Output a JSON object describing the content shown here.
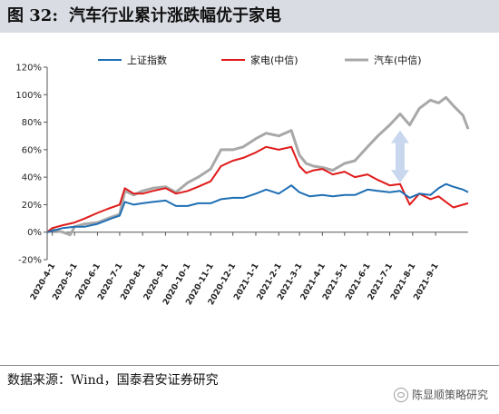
{
  "figure": {
    "number": "图 32:",
    "title": "汽车行业累计涨跌幅优于家电"
  },
  "source_text": "数据来源：Wind，国泰君安证券研究",
  "watermark_text": "陈显顺策略研究",
  "watermark_icon": "wechat-icon",
  "colors": {
    "series": [
      "#1f6fb4",
      "#e01a1a",
      "#a8a8a8"
    ],
    "arrow": "#c9d7ee"
  },
  "chart_data": {
    "type": "line",
    "title": "",
    "xlabel": "",
    "ylabel": "",
    "ylim": [
      -0.2,
      1.2
    ],
    "y_ticks": [
      "-20%",
      "0%",
      "20%",
      "40%",
      "60%",
      "80%",
      "100%",
      "120%"
    ],
    "x_range": [
      "2020-03-25",
      "2021-10-15"
    ],
    "x_ticks": [
      "2020-4-1",
      "2020-5-1",
      "2020-6-1",
      "2020-7-1",
      "2020-8-1",
      "2020-9-1",
      "2020-10-1",
      "2020-11-1",
      "2020-12-1",
      "2021-1-1",
      "2021-2-1",
      "2021-3-1",
      "2021-4-1",
      "2021-5-1",
      "2021-6-1",
      "2021-7-1",
      "2021-8-1",
      "2021-9-1"
    ],
    "grid": false,
    "legend": "top",
    "series": [
      {
        "name": "上证指数",
        "points": [
          [
            "2020-03-25",
            0.0
          ],
          [
            "2020-04-01",
            0.01
          ],
          [
            "2020-04-15",
            0.03
          ],
          [
            "2020-05-01",
            0.04
          ],
          [
            "2020-05-15",
            0.04
          ],
          [
            "2020-06-01",
            0.06
          ],
          [
            "2020-06-20",
            0.1
          ],
          [
            "2020-07-01",
            0.12
          ],
          [
            "2020-07-08",
            0.22
          ],
          [
            "2020-07-20",
            0.2
          ],
          [
            "2020-08-01",
            0.21
          ],
          [
            "2020-08-15",
            0.22
          ],
          [
            "2020-09-01",
            0.23
          ],
          [
            "2020-09-15",
            0.19
          ],
          [
            "2020-10-01",
            0.19
          ],
          [
            "2020-10-15",
            0.21
          ],
          [
            "2020-11-01",
            0.21
          ],
          [
            "2020-11-15",
            0.24
          ],
          [
            "2020-12-01",
            0.25
          ],
          [
            "2020-12-15",
            0.25
          ],
          [
            "2021-01-01",
            0.28
          ],
          [
            "2021-01-15",
            0.31
          ],
          [
            "2021-02-01",
            0.28
          ],
          [
            "2021-02-18",
            0.34
          ],
          [
            "2021-03-01",
            0.29
          ],
          [
            "2021-03-15",
            0.26
          ],
          [
            "2021-04-01",
            0.27
          ],
          [
            "2021-04-15",
            0.26
          ],
          [
            "2021-05-01",
            0.27
          ],
          [
            "2021-05-15",
            0.27
          ],
          [
            "2021-06-01",
            0.31
          ],
          [
            "2021-06-15",
            0.3
          ],
          [
            "2021-07-01",
            0.29
          ],
          [
            "2021-07-15",
            0.3
          ],
          [
            "2021-07-28",
            0.25
          ],
          [
            "2021-08-10",
            0.28
          ],
          [
            "2021-08-25",
            0.27
          ],
          [
            "2021-09-05",
            0.32
          ],
          [
            "2021-09-15",
            0.35
          ],
          [
            "2021-09-25",
            0.33
          ],
          [
            "2021-10-08",
            0.31
          ],
          [
            "2021-10-15",
            0.29
          ]
        ]
      },
      {
        "name": "家电(中信)",
        "points": [
          [
            "2020-03-25",
            0.0
          ],
          [
            "2020-04-01",
            0.03
          ],
          [
            "2020-04-15",
            0.05
          ],
          [
            "2020-05-01",
            0.07
          ],
          [
            "2020-05-15",
            0.1
          ],
          [
            "2020-06-01",
            0.14
          ],
          [
            "2020-06-15",
            0.17
          ],
          [
            "2020-07-01",
            0.2
          ],
          [
            "2020-07-08",
            0.32
          ],
          [
            "2020-07-20",
            0.28
          ],
          [
            "2020-08-01",
            0.28
          ],
          [
            "2020-08-15",
            0.3
          ],
          [
            "2020-09-01",
            0.32
          ],
          [
            "2020-09-15",
            0.28
          ],
          [
            "2020-10-01",
            0.3
          ],
          [
            "2020-10-15",
            0.33
          ],
          [
            "2020-11-01",
            0.37
          ],
          [
            "2020-11-15",
            0.48
          ],
          [
            "2020-12-01",
            0.52
          ],
          [
            "2020-12-15",
            0.54
          ],
          [
            "2021-01-01",
            0.58
          ],
          [
            "2021-01-15",
            0.62
          ],
          [
            "2021-02-01",
            0.6
          ],
          [
            "2021-02-18",
            0.62
          ],
          [
            "2021-03-01",
            0.48
          ],
          [
            "2021-03-10",
            0.43
          ],
          [
            "2021-03-20",
            0.45
          ],
          [
            "2021-04-01",
            0.46
          ],
          [
            "2021-04-15",
            0.42
          ],
          [
            "2021-05-01",
            0.44
          ],
          [
            "2021-05-15",
            0.4
          ],
          [
            "2021-06-01",
            0.42
          ],
          [
            "2021-06-15",
            0.38
          ],
          [
            "2021-07-01",
            0.34
          ],
          [
            "2021-07-15",
            0.35
          ],
          [
            "2021-07-28",
            0.2
          ],
          [
            "2021-08-10",
            0.28
          ],
          [
            "2021-08-25",
            0.24
          ],
          [
            "2021-09-05",
            0.26
          ],
          [
            "2021-09-15",
            0.22
          ],
          [
            "2021-09-25",
            0.18
          ],
          [
            "2021-10-08",
            0.2
          ],
          [
            "2021-10-15",
            0.21
          ]
        ]
      },
      {
        "name": "汽车(中信)",
        "points": [
          [
            "2020-03-25",
            0.0
          ],
          [
            "2020-04-01",
            0.02
          ],
          [
            "2020-04-15",
            0.0
          ],
          [
            "2020-04-25",
            -0.02
          ],
          [
            "2020-05-01",
            0.04
          ],
          [
            "2020-05-15",
            0.06
          ],
          [
            "2020-06-01",
            0.07
          ],
          [
            "2020-06-15",
            0.1
          ],
          [
            "2020-07-01",
            0.13
          ],
          [
            "2020-07-08",
            0.3
          ],
          [
            "2020-07-20",
            0.27
          ],
          [
            "2020-08-01",
            0.3
          ],
          [
            "2020-08-15",
            0.32
          ],
          [
            "2020-09-01",
            0.33
          ],
          [
            "2020-09-15",
            0.29
          ],
          [
            "2020-10-01",
            0.36
          ],
          [
            "2020-10-15",
            0.4
          ],
          [
            "2020-11-01",
            0.46
          ],
          [
            "2020-11-15",
            0.6
          ],
          [
            "2020-12-01",
            0.6
          ],
          [
            "2020-12-15",
            0.62
          ],
          [
            "2021-01-01",
            0.68
          ],
          [
            "2021-01-15",
            0.72
          ],
          [
            "2021-02-01",
            0.7
          ],
          [
            "2021-02-18",
            0.74
          ],
          [
            "2021-03-01",
            0.56
          ],
          [
            "2021-03-10",
            0.5
          ],
          [
            "2021-03-20",
            0.48
          ],
          [
            "2021-04-01",
            0.47
          ],
          [
            "2021-04-15",
            0.45
          ],
          [
            "2021-05-01",
            0.5
          ],
          [
            "2021-05-15",
            0.52
          ],
          [
            "2021-06-01",
            0.62
          ],
          [
            "2021-06-15",
            0.7
          ],
          [
            "2021-07-01",
            0.78
          ],
          [
            "2021-07-15",
            0.86
          ],
          [
            "2021-07-28",
            0.78
          ],
          [
            "2021-08-10",
            0.9
          ],
          [
            "2021-08-25",
            0.96
          ],
          [
            "2021-09-05",
            0.94
          ],
          [
            "2021-09-15",
            0.98
          ],
          [
            "2021-09-25",
            0.92
          ],
          [
            "2021-10-08",
            0.85
          ],
          [
            "2021-10-15",
            0.75
          ]
        ]
      }
    ],
    "annotations": [
      {
        "type": "double-arrow",
        "x": "2021-07-15",
        "y_from": 0.36,
        "y_to": 0.74
      }
    ]
  }
}
